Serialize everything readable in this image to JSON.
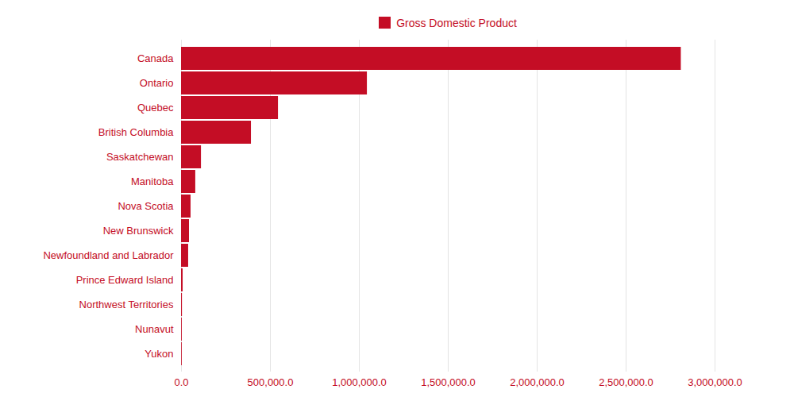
{
  "chart_data": {
    "type": "bar",
    "orientation": "horizontal",
    "categories": [
      "Canada",
      "Ontario",
      "Quebec",
      "British Columbia",
      "Saskatchewan",
      "Manitoba",
      "Nova Scotia",
      "New Brunswick",
      "Newfoundland and Labrador",
      "Prince Edward Island",
      "Northwest Territories",
      "Nunavut",
      "Yukon"
    ],
    "series": [
      {
        "name": "Gross Domestic Product",
        "color": "#c40d25",
        "values": [
          2810000,
          1045000,
          545000,
          393000,
          112000,
          80000,
          53500,
          44600,
          40000,
          9000,
          5000,
          4000,
          3800
        ]
      }
    ],
    "xlim": [
      0,
      3000000
    ],
    "xticks": [
      {
        "value": 0,
        "label": "0.0"
      },
      {
        "value": 500000,
        "label": "500,000.0"
      },
      {
        "value": 1000000,
        "label": "1,000,000.0"
      },
      {
        "value": 1500000,
        "label": "1,500,000.0"
      },
      {
        "value": 2000000,
        "label": "2,000,000.0"
      },
      {
        "value": 2500000,
        "label": "2,500,000.0"
      },
      {
        "value": 3000000,
        "label": "3,000,000.0"
      }
    ],
    "grid": true,
    "legend": "top"
  }
}
